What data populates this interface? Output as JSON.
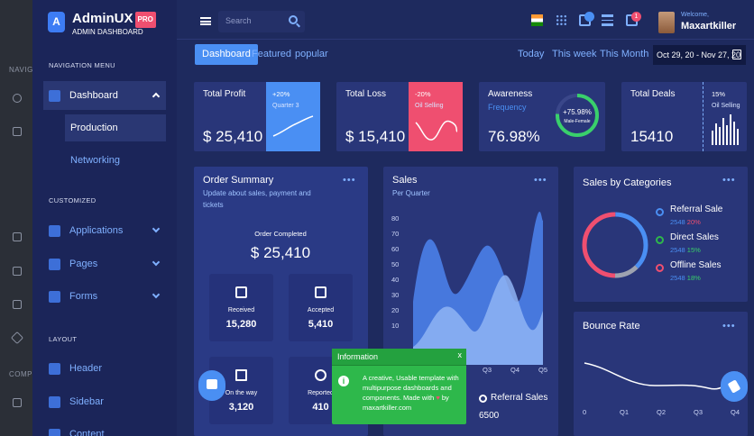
{
  "outer": {
    "labels": [
      "NAVIG",
      "COMP"
    ]
  },
  "brand": {
    "name": "AdminUX",
    "pro": "PRO",
    "subtitle": "ADMIN DASHBOARD",
    "logo_letter": "A"
  },
  "sidebar": {
    "navigation_title": "NAVIGATION MENU",
    "dashboard": "Dashboard",
    "production": "Production",
    "networking": "Networking",
    "customized_title": "CUSTOMIZED",
    "applications": "Applications",
    "pages": "Pages",
    "forms": "Forms",
    "layout_title": "LAYOUT",
    "header": "Header",
    "sidebar_item": "Sidebar",
    "content": "Content"
  },
  "topbar": {
    "search_placeholder": "Search",
    "welcome": "Welcome,",
    "username": "Maxartkiller",
    "notification_count": "1"
  },
  "subnav": {
    "tabs": [
      "Dashboard",
      "Featured",
      "popular"
    ],
    "periods": [
      "Today",
      "This week",
      "This Month"
    ],
    "daterange": "Oct 29, 20 - Nov 27, 20"
  },
  "kpis": {
    "profit": {
      "title": "Total Profit",
      "value": "$ 25,410",
      "pct": "+20%",
      "sub": "Quarter 3"
    },
    "loss": {
      "title": "Total Loss",
      "value": "$ 15,410",
      "pct": "-20%",
      "sub": "Oil Selling"
    },
    "awareness": {
      "title": "Awareness",
      "sub": "Frequency",
      "value": "76.98%",
      "ring_value": "+75.98%",
      "ring_sub": "Male-Female",
      "ring_fraction": 0.76
    },
    "deals": {
      "title": "Total Deals",
      "value": "15410",
      "pct": "15%",
      "sub": "Oil Selling"
    }
  },
  "order": {
    "title": "Order Summary",
    "subtitle": "Update about sales, payment and tickets",
    "completed_label": "Order Completed",
    "completed_value": "$ 25,410",
    "received_label": "Received",
    "received_value": "15,280",
    "accepted_label": "Accepted",
    "accepted_value": "5,410",
    "ontheway_label": "On the way",
    "ontheway_value": "3,120",
    "reported_label": "Reported",
    "reported_value": "410"
  },
  "sales": {
    "title": "Sales",
    "subtitle": "Per Quarter",
    "legend": "Referral Sales",
    "legend_value": "6500"
  },
  "chart_data": [
    {
      "type": "area",
      "title": "Sales",
      "subtitle": "Per Quarter",
      "ylim": [
        0,
        80
      ],
      "yticks": [
        "80",
        "70",
        "60",
        "50",
        "40",
        "30",
        "20",
        "10"
      ],
      "xticks": [
        "Q3",
        "Q4",
        "Q5"
      ]
    },
    {
      "type": "line",
      "title": "Bounce Rate",
      "xticks": [
        "0",
        "Q1",
        "Q2",
        "Q3",
        "Q4"
      ]
    }
  ],
  "categories": {
    "title": "Sales by Categories",
    "items": [
      {
        "name": "Referral Sale",
        "value": "2548",
        "pct": "20%",
        "color": "#4a8ff3",
        "pct_color": "#ef4f70"
      },
      {
        "name": "Direct Sales",
        "value": "2548",
        "pct": "15%",
        "color": "#2eb84b",
        "pct_color": "#39d06b"
      },
      {
        "name": "Offline Sales",
        "value": "2548",
        "pct": "18%",
        "color": "#ef4f70",
        "pct_color": "#39d06b"
      }
    ]
  },
  "bounce": {
    "title": "Bounce Rate"
  },
  "toast": {
    "title": "Information",
    "close": "x",
    "body": "A creative, Usable template with multipurpose dashboards and components. Made with",
    "heart": "♥",
    "by": "by",
    "site": "maxartkiller.com"
  },
  "colors": {
    "accent": "#4a8ff3",
    "danger": "#ef4f70",
    "success": "#2eb84b",
    "bg": "#1e2a5e",
    "card": "#293679"
  }
}
